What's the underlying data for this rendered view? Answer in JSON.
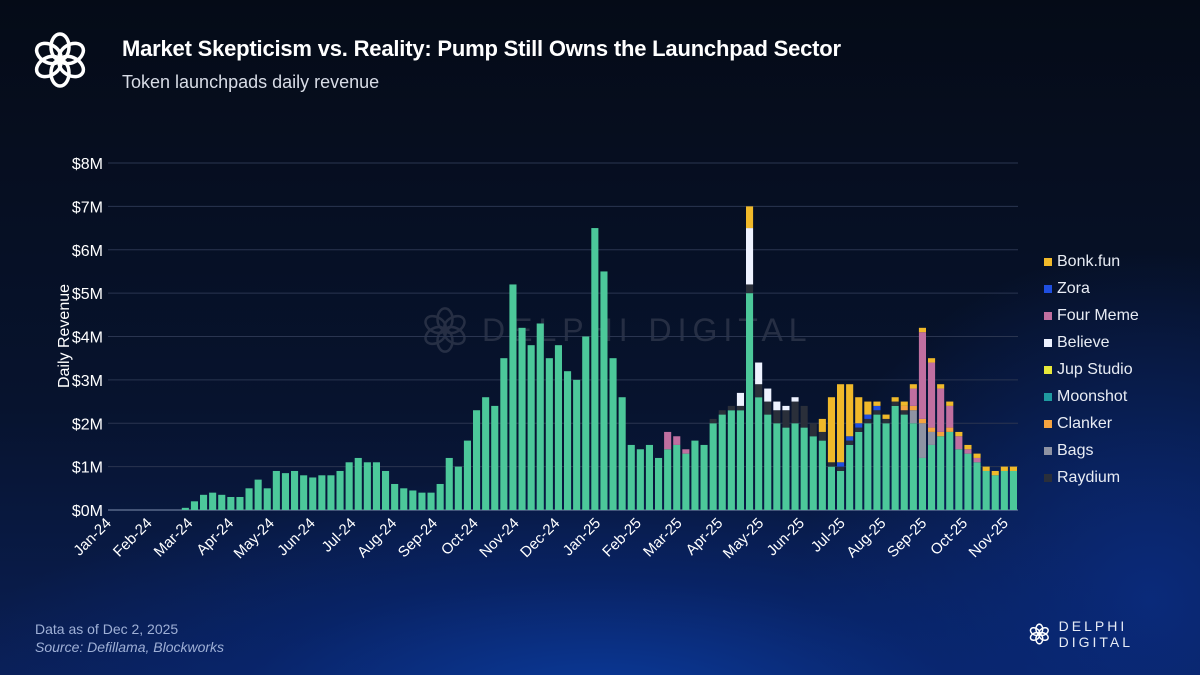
{
  "header": {
    "title": "Market Skepticism vs. Reality: Pump Still Owns the Launchpad Sector",
    "subtitle": "Token launchpads daily revenue"
  },
  "footer": {
    "data_date": "Data as of Dec 2, 2025",
    "source": "Source: Defillama, Blockworks"
  },
  "brand": {
    "name": "DELPHI DIGITAL",
    "watermark": "DELPHI DIGITAL"
  },
  "chart_data": {
    "type": "bar",
    "stacked": true,
    "frequency": "weekly",
    "start": "2024-01-01",
    "ylabel": "Daily Revenue",
    "xlabel": "",
    "ylim": [
      0,
      8
    ],
    "y_ticks": [
      "$0M",
      "$1M",
      "$2M",
      "$3M",
      "$4M",
      "$5M",
      "$6M",
      "$7M",
      "$8M"
    ],
    "x_ticks": [
      "Jan-24",
      "Feb-24",
      "Mar-24",
      "Apr-24",
      "May-24",
      "Jun-24",
      "Jul-24",
      "Aug-24",
      "Sep-24",
      "Oct-24",
      "Nov-24",
      "Dec-24",
      "Jan-25",
      "Feb-25",
      "Mar-25",
      "Apr-25",
      "May-25",
      "Jun-25",
      "Jul-25",
      "Aug-25",
      "Sep-25",
      "Oct-25",
      "Nov-25"
    ],
    "grid": true,
    "legend": "right",
    "series": [
      {
        "name": "",
        "color": "#4cc89a",
        "values": [
          0,
          0,
          0,
          0,
          0,
          0,
          0,
          0,
          0.05,
          0.2,
          0.35,
          0.4,
          0.35,
          0.3,
          0.3,
          0.5,
          0.7,
          0.5,
          0.9,
          0.85,
          0.9,
          0.8,
          0.75,
          0.8,
          0.8,
          0.9,
          1.1,
          1.2,
          1.1,
          1.1,
          0.9,
          0.6,
          0.5,
          0.45,
          0.4,
          0.4,
          0.6,
          1.2,
          1.0,
          1.6,
          2.3,
          2.6,
          2.4,
          3.5,
          5.2,
          4.2,
          3.8,
          4.3,
          3.5,
          3.8,
          3.2,
          3.0,
          4.0,
          6.5,
          5.5,
          3.5,
          2.6,
          1.5,
          1.4,
          1.5,
          1.2,
          1.4,
          1.5,
          1.3,
          1.6,
          1.5,
          2.0,
          2.2,
          2.3,
          2.3,
          5.0,
          2.6,
          2.2,
          2.0,
          1.9,
          2.0,
          1.9,
          1.7,
          1.6,
          1.0,
          0.9,
          1.5,
          1.8,
          2.0,
          2.2,
          2.0,
          2.4,
          2.2,
          2.0,
          1.2,
          1.5,
          1.7,
          1.8,
          1.4,
          1.3,
          1.1,
          0.9,
          0.8,
          0.9,
          0.9
        ]
      },
      {
        "name": "Raydium",
        "color": "#2a2f3a",
        "values": [
          0,
          0,
          0,
          0,
          0,
          0,
          0,
          0,
          0,
          0,
          0,
          0,
          0,
          0,
          0,
          0,
          0,
          0,
          0,
          0,
          0,
          0,
          0,
          0,
          0,
          0,
          0,
          0,
          0,
          0,
          0,
          0,
          0,
          0,
          0,
          0,
          0,
          0,
          0,
          0,
          0,
          0,
          0,
          0,
          0,
          0,
          0,
          0,
          0,
          0,
          0,
          0,
          0,
          0,
          0,
          0,
          0,
          0,
          0,
          0,
          0,
          0,
          0,
          0,
          0,
          0,
          0.1,
          0.1,
          0.1,
          0.1,
          0.2,
          0.3,
          0.3,
          0.3,
          0.4,
          0.5,
          0.5,
          0.3,
          0.2,
          0.1,
          0.1,
          0.1,
          0.1,
          0.1,
          0.1,
          0.1,
          0.1,
          0.1,
          0,
          0,
          0,
          0,
          0,
          0,
          0,
          0,
          0,
          0,
          0,
          0
        ]
      },
      {
        "name": "Bags",
        "color": "#8e93a3",
        "values": [
          0,
          0,
          0,
          0,
          0,
          0,
          0,
          0,
          0,
          0,
          0,
          0,
          0,
          0,
          0,
          0,
          0,
          0,
          0,
          0,
          0,
          0,
          0,
          0,
          0,
          0,
          0,
          0,
          0,
          0,
          0,
          0,
          0,
          0,
          0,
          0,
          0,
          0,
          0,
          0,
          0,
          0,
          0,
          0,
          0,
          0,
          0,
          0,
          0,
          0,
          0,
          0,
          0,
          0,
          0,
          0,
          0,
          0,
          0,
          0,
          0,
          0,
          0,
          0,
          0,
          0,
          0,
          0,
          0,
          0,
          0,
          0,
          0,
          0,
          0,
          0,
          0,
          0,
          0,
          0,
          0,
          0,
          0,
          0,
          0,
          0,
          0,
          0,
          0.3,
          0.8,
          0.3,
          0,
          0,
          0,
          0,
          0,
          0,
          0,
          0,
          0
        ]
      },
      {
        "name": "Clanker",
        "color": "#f4a340",
        "values": [
          0,
          0,
          0,
          0,
          0,
          0,
          0,
          0,
          0,
          0,
          0,
          0,
          0,
          0,
          0,
          0,
          0,
          0,
          0,
          0,
          0,
          0,
          0,
          0,
          0,
          0,
          0,
          0,
          0,
          0,
          0,
          0,
          0,
          0,
          0,
          0,
          0,
          0,
          0,
          0,
          0,
          0,
          0,
          0,
          0,
          0,
          0,
          0,
          0,
          0,
          0,
          0,
          0,
          0,
          0,
          0,
          0,
          0,
          0,
          0,
          0,
          0,
          0,
          0,
          0,
          0,
          0,
          0,
          0,
          0,
          0,
          0,
          0,
          0,
          0,
          0,
          0,
          0,
          0,
          0,
          0,
          0,
          0,
          0,
          0,
          0,
          0,
          0.1,
          0.1,
          0.1,
          0.1,
          0.1,
          0.1,
          0,
          0,
          0,
          0,
          0,
          0,
          0
        ]
      },
      {
        "name": "Moonshot",
        "color": "#1f9aa0",
        "values": [
          0,
          0,
          0,
          0,
          0,
          0,
          0,
          0,
          0,
          0,
          0,
          0,
          0,
          0,
          0,
          0,
          0,
          0,
          0,
          0,
          0,
          0,
          0,
          0,
          0,
          0,
          0,
          0,
          0,
          0,
          0,
          0,
          0,
          0,
          0,
          0,
          0,
          0,
          0,
          0,
          0,
          0,
          0,
          0,
          0,
          0,
          0,
          0,
          0,
          0,
          0,
          0,
          0,
          0,
          0,
          0,
          0,
          0,
          0,
          0,
          0,
          0,
          0,
          0,
          0,
          0,
          0,
          0,
          0,
          0,
          0,
          0,
          0,
          0,
          0,
          0,
          0,
          0,
          0,
          0,
          0,
          0,
          0,
          0,
          0,
          0,
          0,
          0,
          0,
          0,
          0,
          0,
          0,
          0,
          0,
          0,
          0,
          0,
          0,
          0
        ]
      },
      {
        "name": "Jup Studio",
        "color": "#e8e83a",
        "values": [
          0,
          0,
          0,
          0,
          0,
          0,
          0,
          0,
          0,
          0,
          0,
          0,
          0,
          0,
          0,
          0,
          0,
          0,
          0,
          0,
          0,
          0,
          0,
          0,
          0,
          0,
          0,
          0,
          0,
          0,
          0,
          0,
          0,
          0,
          0,
          0,
          0,
          0,
          0,
          0,
          0,
          0,
          0,
          0,
          0,
          0,
          0,
          0,
          0,
          0,
          0,
          0,
          0,
          0,
          0,
          0,
          0,
          0,
          0,
          0,
          0,
          0,
          0,
          0,
          0,
          0,
          0,
          0,
          0,
          0,
          0,
          0,
          0,
          0,
          0,
          0,
          0,
          0,
          0,
          0,
          0,
          0,
          0,
          0,
          0,
          0,
          0,
          0,
          0,
          0,
          0,
          0,
          0,
          0,
          0,
          0,
          0,
          0,
          0,
          0
        ]
      },
      {
        "name": "Believe",
        "color": "#eef2ff",
        "values": [
          0,
          0,
          0,
          0,
          0,
          0,
          0,
          0,
          0,
          0,
          0,
          0,
          0,
          0,
          0,
          0,
          0,
          0,
          0,
          0,
          0,
          0,
          0,
          0,
          0,
          0,
          0,
          0,
          0,
          0,
          0,
          0,
          0,
          0,
          0,
          0,
          0,
          0,
          0,
          0,
          0,
          0,
          0,
          0,
          0,
          0,
          0,
          0,
          0,
          0,
          0,
          0,
          0,
          0,
          0,
          0,
          0,
          0,
          0,
          0,
          0,
          0,
          0,
          0,
          0,
          0,
          0,
          0,
          0,
          0.3,
          1.3,
          0.5,
          0.3,
          0.2,
          0.1,
          0.1,
          0,
          0,
          0,
          0,
          0,
          0,
          0,
          0,
          0,
          0,
          0,
          0,
          0,
          0,
          0,
          0,
          0,
          0,
          0,
          0,
          0,
          0,
          0,
          0
        ]
      },
      {
        "name": "Four Meme",
        "color": "#c06fa0",
        "values": [
          0,
          0,
          0,
          0,
          0,
          0,
          0,
          0,
          0,
          0,
          0,
          0,
          0,
          0,
          0,
          0,
          0,
          0,
          0,
          0,
          0,
          0,
          0,
          0,
          0,
          0,
          0,
          0,
          0,
          0,
          0,
          0,
          0,
          0,
          0,
          0,
          0,
          0,
          0,
          0,
          0,
          0,
          0,
          0,
          0,
          0,
          0,
          0,
          0,
          0,
          0,
          0,
          0,
          0,
          0,
          0,
          0,
          0,
          0,
          0,
          0,
          0.4,
          0.2,
          0.1,
          0,
          0,
          0,
          0,
          0,
          0,
          0,
          0,
          0,
          0,
          0,
          0,
          0,
          0,
          0,
          0,
          0,
          0,
          0,
          0,
          0,
          0,
          0,
          0,
          0.4,
          2.0,
          1.5,
          1.0,
          0.5,
          0.3,
          0.1,
          0.1,
          0,
          0,
          0,
          0
        ]
      },
      {
        "name": "Zora",
        "color": "#1f4fe0",
        "values": [
          0,
          0,
          0,
          0,
          0,
          0,
          0,
          0,
          0,
          0,
          0,
          0,
          0,
          0,
          0,
          0,
          0,
          0,
          0,
          0,
          0,
          0,
          0,
          0,
          0,
          0,
          0,
          0,
          0,
          0,
          0,
          0,
          0,
          0,
          0,
          0,
          0,
          0,
          0,
          0,
          0,
          0,
          0,
          0,
          0,
          0,
          0,
          0,
          0,
          0,
          0,
          0,
          0,
          0,
          0,
          0,
          0,
          0,
          0,
          0,
          0,
          0,
          0,
          0,
          0,
          0,
          0,
          0,
          0,
          0,
          0,
          0,
          0,
          0,
          0,
          0,
          0,
          0,
          0,
          0,
          0.1,
          0.1,
          0.1,
          0.1,
          0.1,
          0,
          0,
          0,
          0,
          0,
          0,
          0,
          0,
          0,
          0,
          0,
          0,
          0,
          0,
          0
        ]
      },
      {
        "name": "Bonk.fun",
        "color": "#f0b92a",
        "values": [
          0,
          0,
          0,
          0,
          0,
          0,
          0,
          0,
          0,
          0,
          0,
          0,
          0,
          0,
          0,
          0,
          0,
          0,
          0,
          0,
          0,
          0,
          0,
          0,
          0,
          0,
          0,
          0,
          0,
          0,
          0,
          0,
          0,
          0,
          0,
          0,
          0,
          0,
          0,
          0,
          0,
          0,
          0,
          0,
          0,
          0,
          0,
          0,
          0,
          0,
          0,
          0,
          0,
          0,
          0,
          0,
          0,
          0,
          0,
          0,
          0,
          0,
          0,
          0,
          0,
          0,
          0,
          0,
          0,
          0,
          0.5,
          0,
          0,
          0,
          0,
          0,
          0,
          0,
          0.3,
          1.5,
          1.8,
          1.2,
          0.6,
          0.3,
          0.1,
          0.1,
          0.1,
          0.1,
          0.1,
          0.1,
          0.1,
          0.1,
          0.1,
          0.1,
          0.1,
          0.1,
          0.1,
          0.1,
          0.1,
          0.1
        ]
      }
    ],
    "legend_order": [
      "Bonk.fun",
      "Zora",
      "Four Meme",
      "Believe",
      "Jup Studio",
      "Moonshot",
      "Clanker",
      "Bags",
      "Raydium"
    ]
  }
}
